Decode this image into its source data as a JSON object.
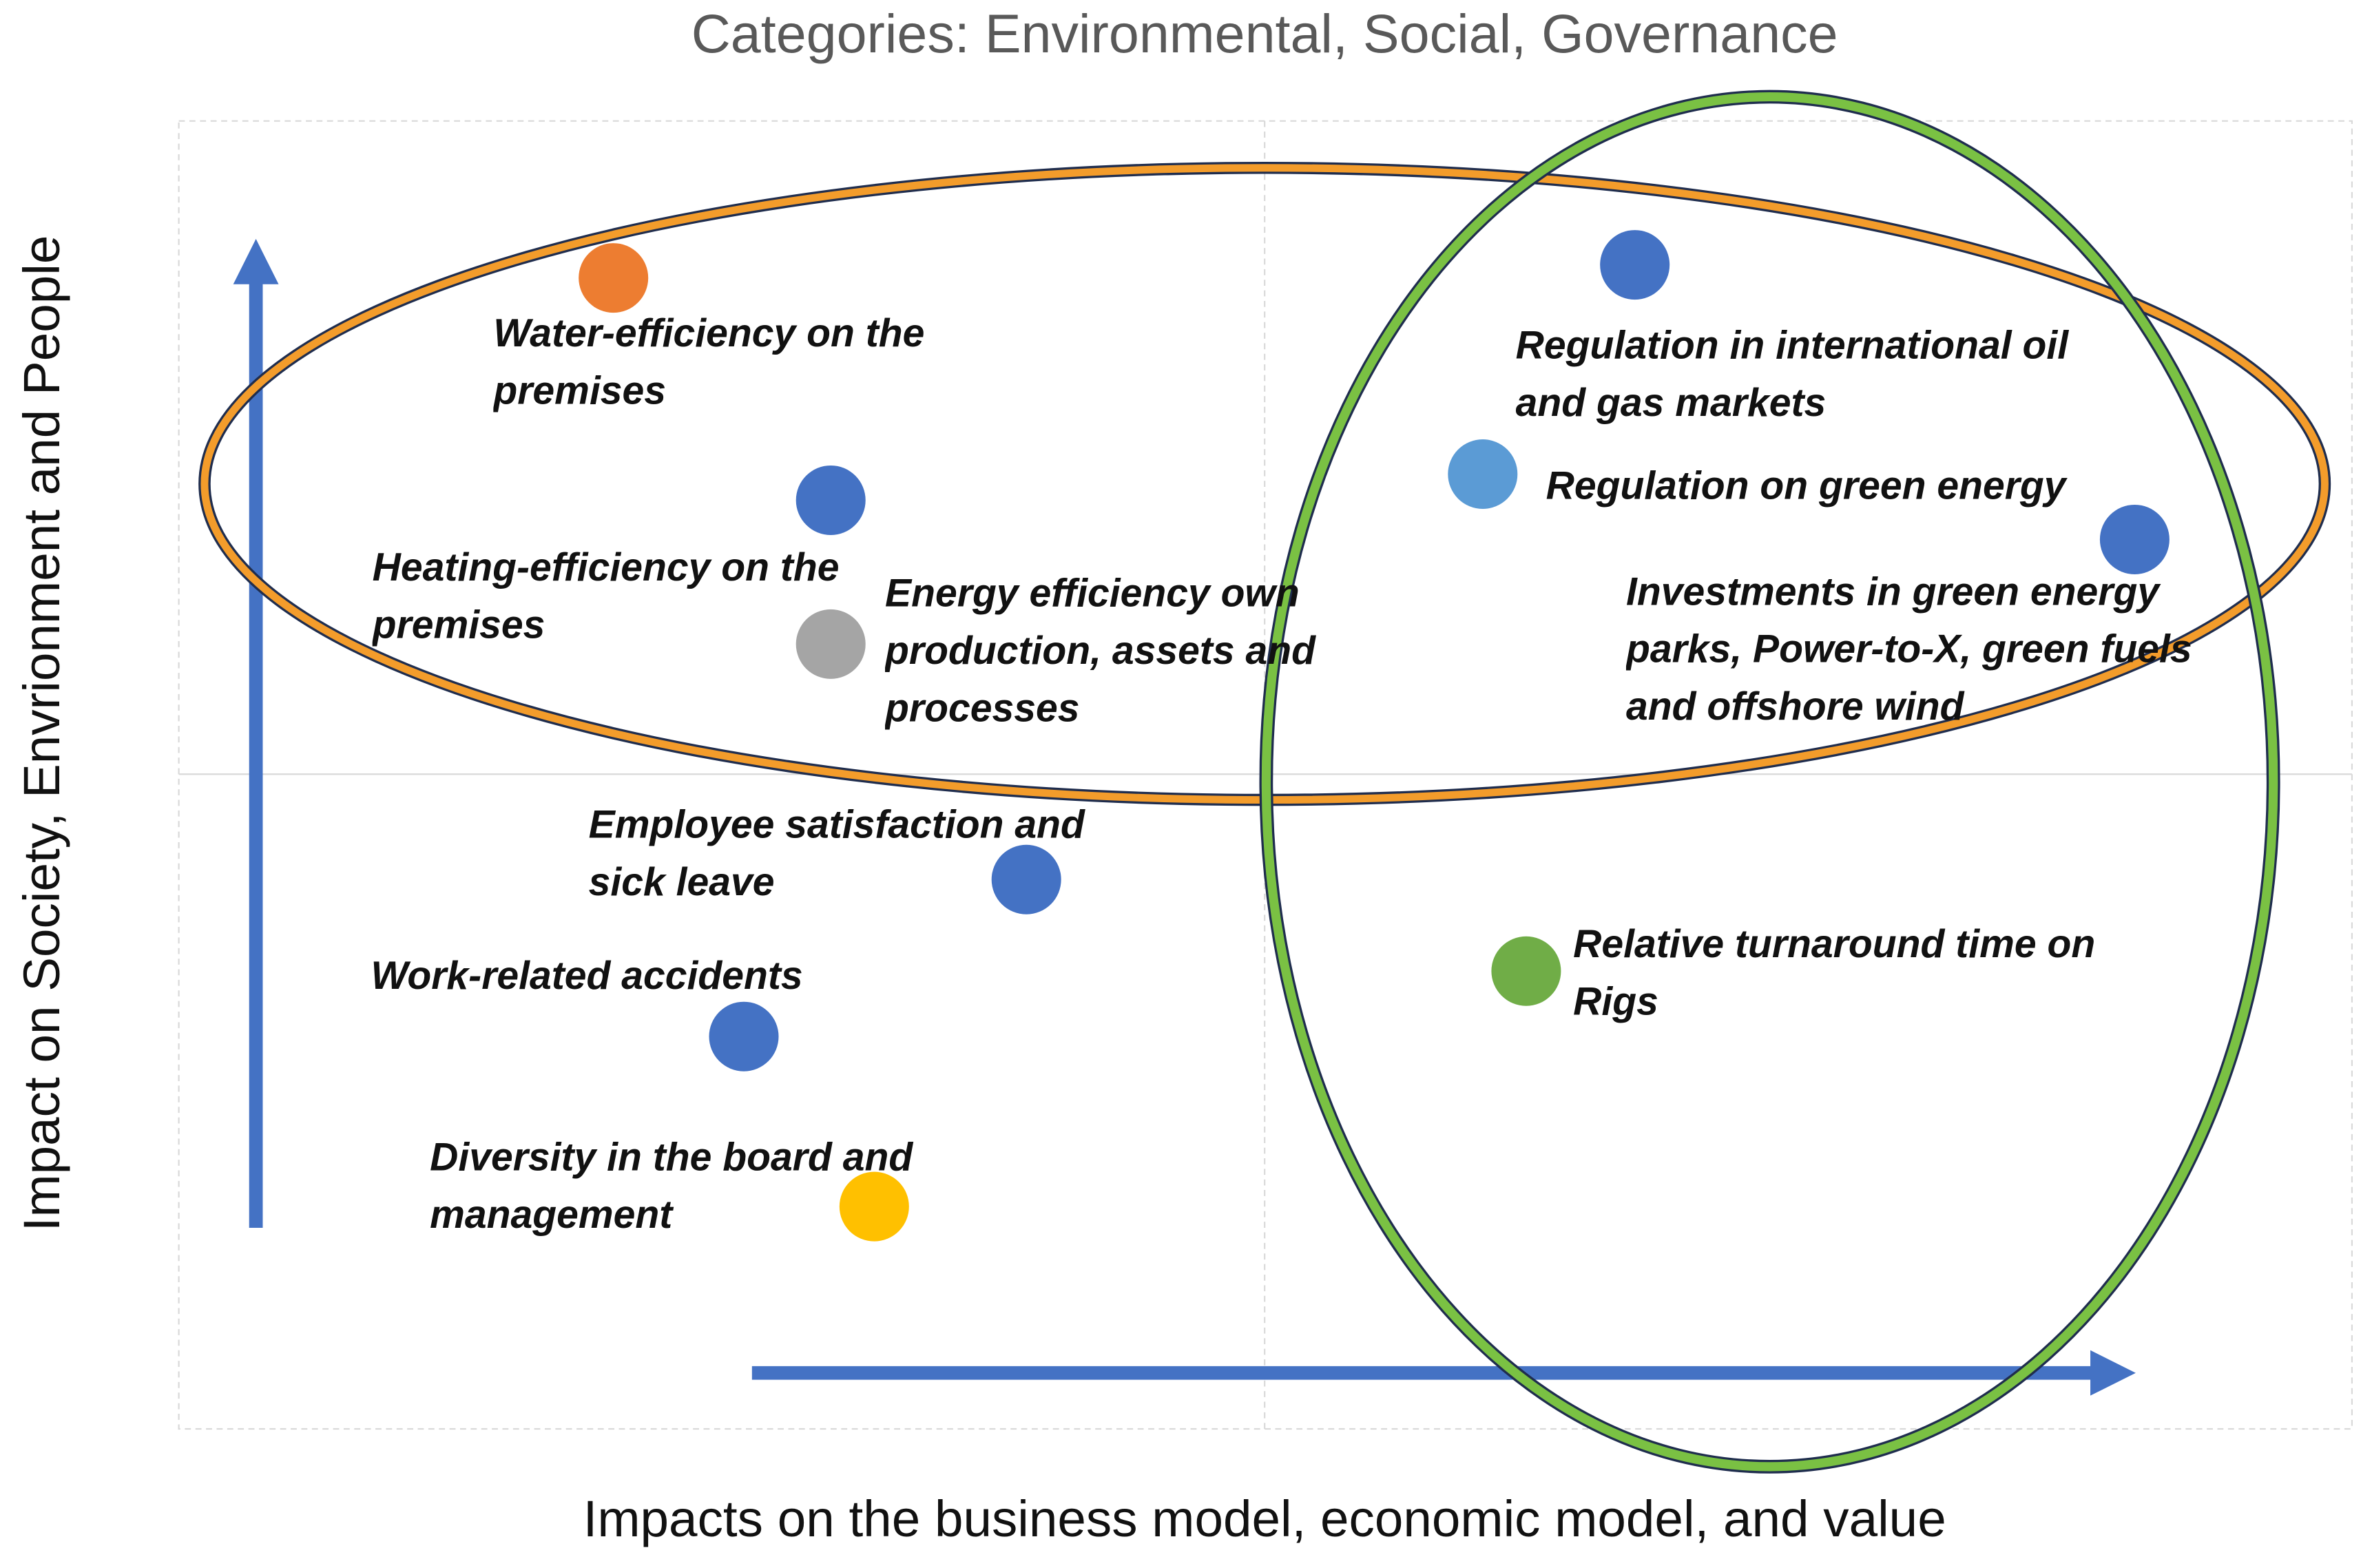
{
  "chart_data": {
    "type": "scatter",
    "title": "Categories: Environmental, Social, Governance",
    "xlabel": "Impacts on the business model, economic model, and value",
    "ylabel": "Impact on Society, Envrionment and People",
    "xlim": [
      0,
      10
    ],
    "ylim": [
      0,
      10
    ],
    "labels": [
      "Water-efficiency on the premises",
      "Heating-efficiency on the premises",
      "Energy efficiency own production, assets and processes",
      "Employee satisfaction and sick leave",
      "Work-related accidents",
      "Diversity in the board and management",
      "Regulation in international oil and gas markets",
      "Regulation on green energy",
      "Investments in green energy parks, Power-to-X, green fuels and offshore wind",
      "Relative turnaround time on Rigs"
    ],
    "x": [
      2.0,
      3.0,
      3.0,
      3.9,
      2.6,
      3.2,
      6.7,
      6.0,
      9.0,
      6.2
    ],
    "y": [
      8.8,
      7.1,
      6.0,
      4.2,
      3.0,
      1.7,
      8.9,
      7.3,
      6.8,
      3.5
    ],
    "colors": [
      "#ed7d31",
      "#4472c4",
      "#a5a5a5",
      "#4472c4",
      "#4472c4",
      "#ffc000",
      "#4472c4",
      "#5b9bd5",
      "#4472c4",
      "#70ad47"
    ]
  }
}
